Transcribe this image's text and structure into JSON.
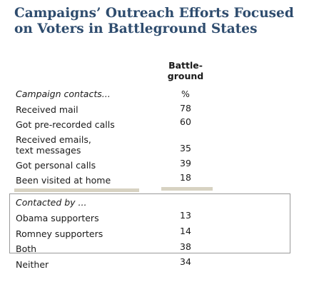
{
  "chart_data": {
    "type": "table",
    "title": "Campaigns’ Outreach Efforts Focused on Voters in Battleground States",
    "column_header": "Battle-\nground",
    "unit": "%",
    "sections": [
      {
        "heading": "Campaign contacts...",
        "rows": [
          {
            "label": "Received mail",
            "value": "78"
          },
          {
            "label": "Got pre-recorded calls",
            "value": "60"
          },
          {
            "label": "Received emails,\ntext messages",
            "value": "35"
          },
          {
            "label": "Got personal calls",
            "value": "39"
          },
          {
            "label": "Been visited at home",
            "value": "18"
          }
        ]
      },
      {
        "heading": "Contacted by ...",
        "rows": [
          {
            "label": "Obama supporters",
            "value": "13"
          },
          {
            "label": "Romney supporters",
            "value": "14"
          },
          {
            "label": "Both",
            "value": "38"
          }
        ]
      }
    ],
    "extra_row": {
      "label": "Neither",
      "value": "34"
    }
  }
}
